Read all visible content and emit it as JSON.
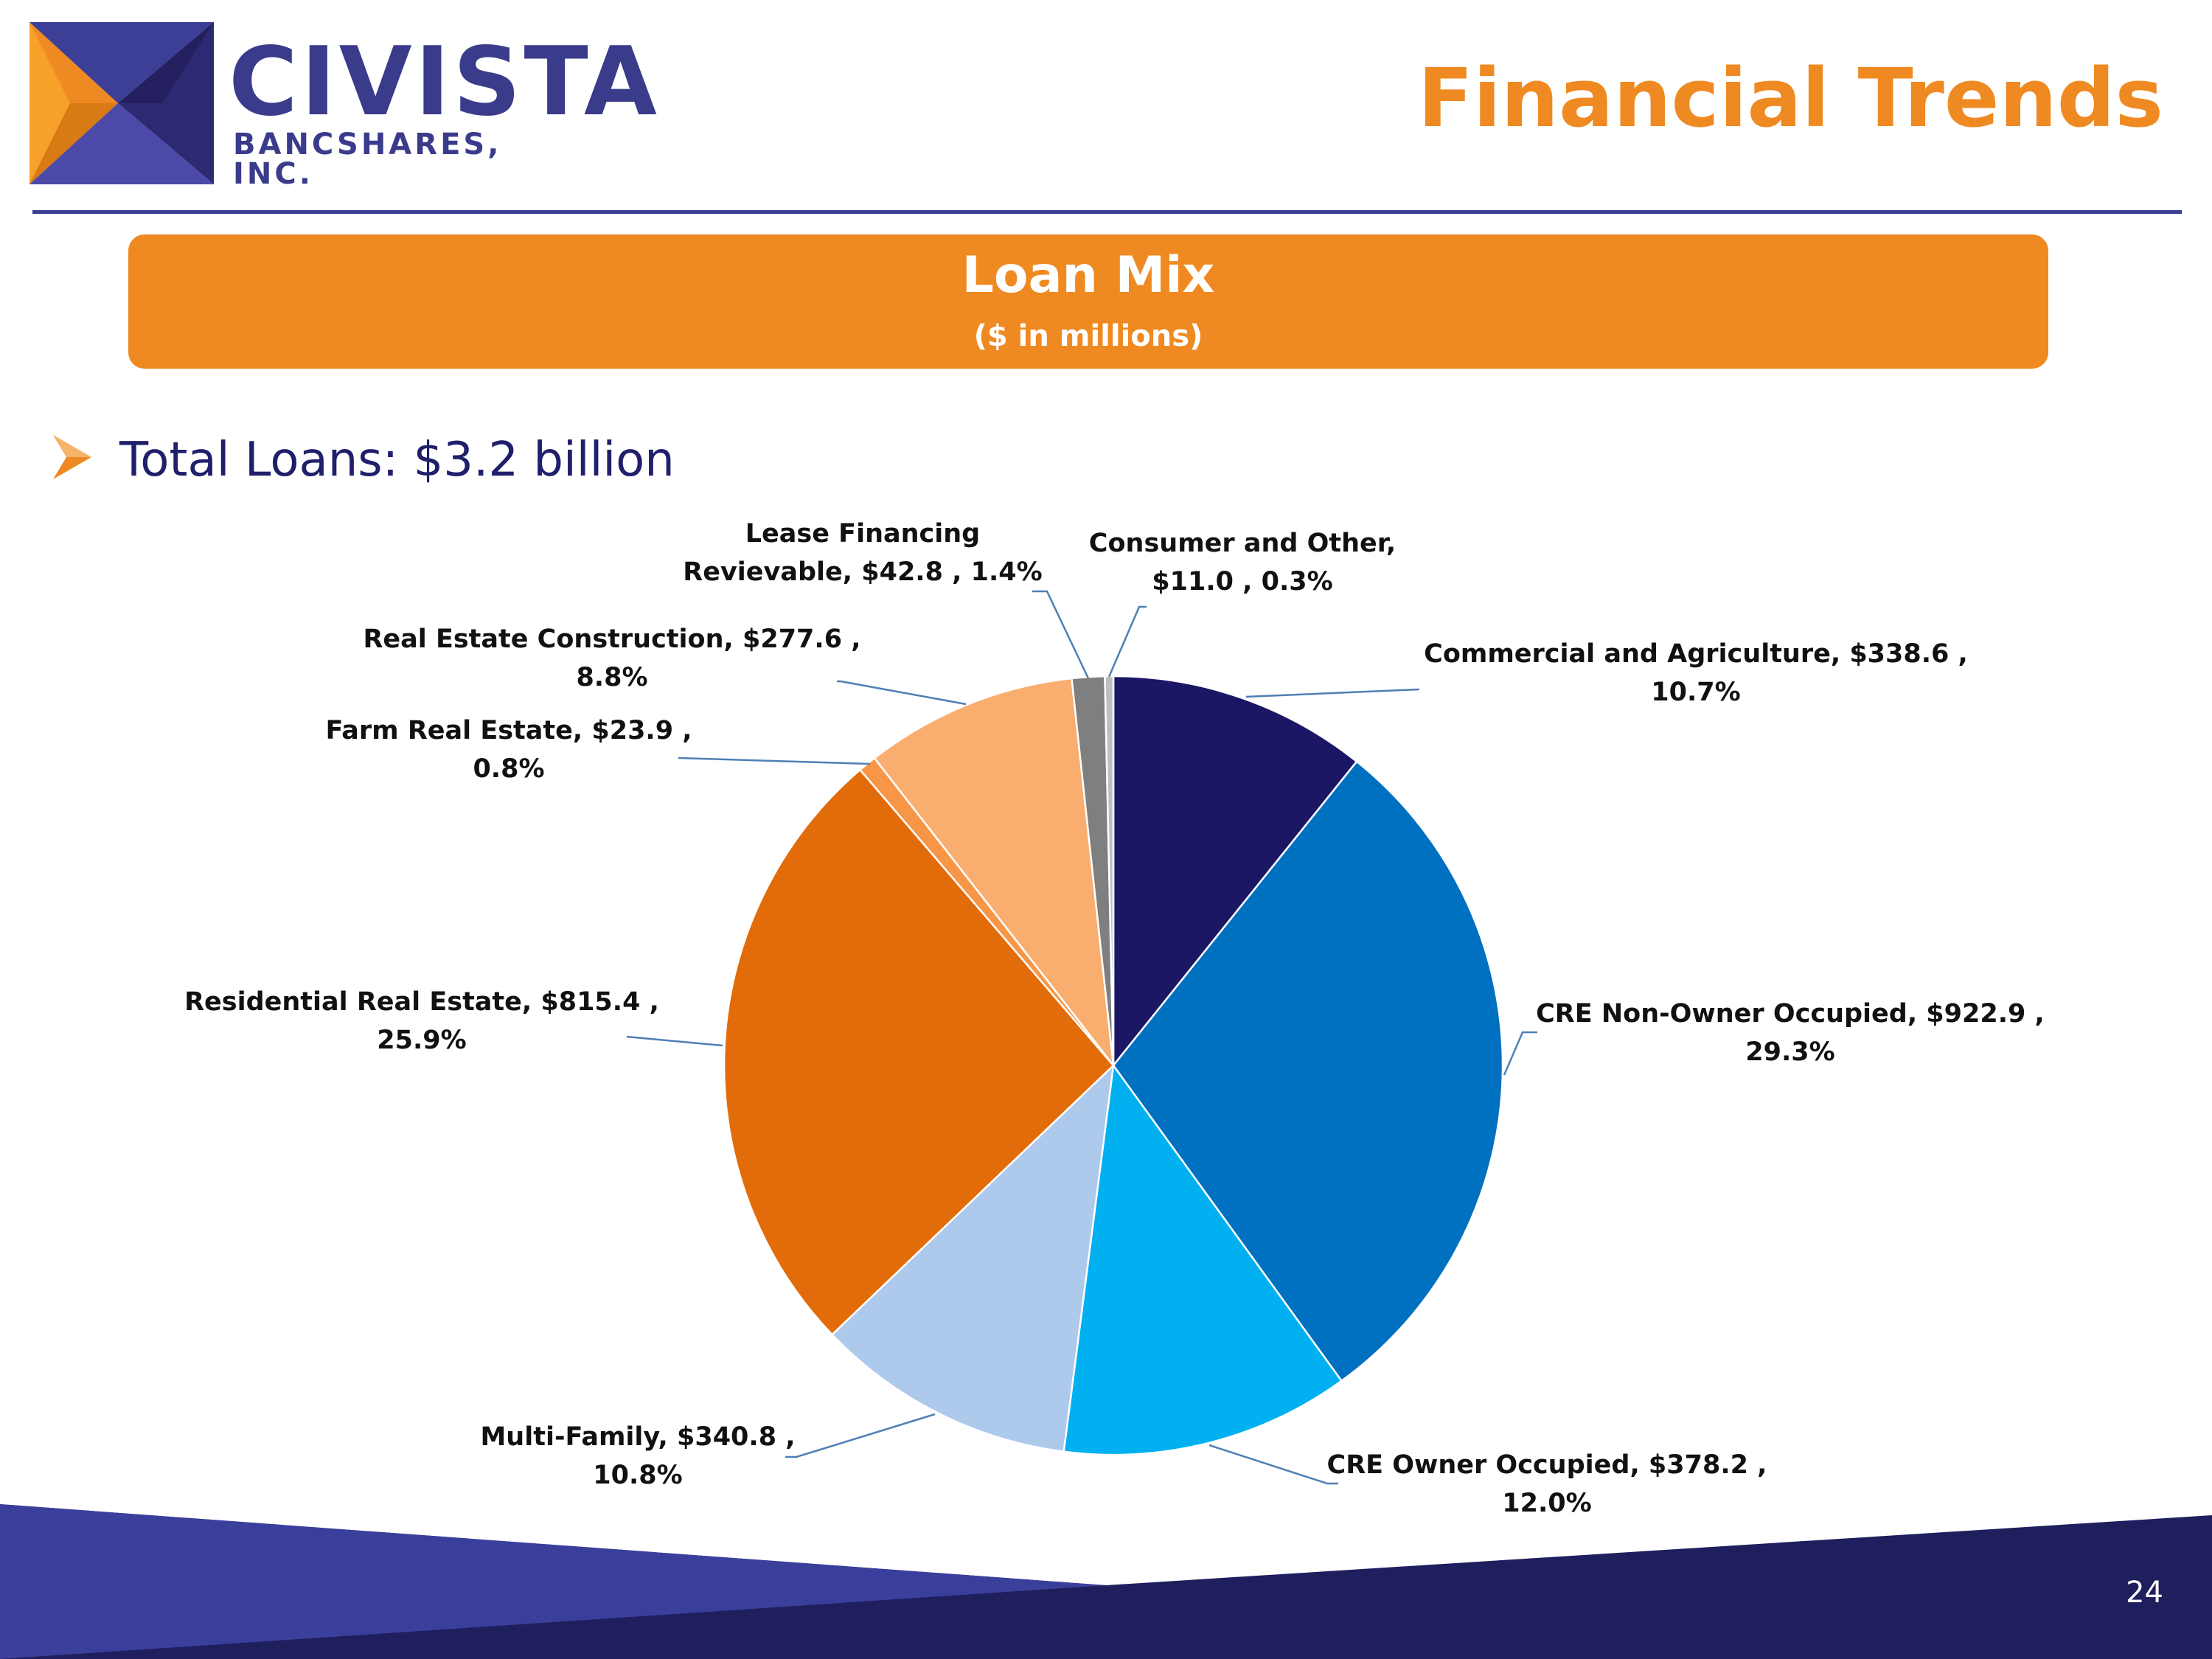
{
  "logo": {
    "name": "CIVISTA",
    "subtitle": "BANCSHARES, INC."
  },
  "header": {
    "title": "Financial Trends"
  },
  "banner": {
    "title": "Loan Mix",
    "subtitle": "($ in millions)"
  },
  "bullet": {
    "text": "Total Loans: $3.2 billion"
  },
  "colors": {
    "accent_orange": "#ef8a22",
    "brand_navy": "#3d3f97",
    "text_navy": "#1f1f6b"
  },
  "chart_data": {
    "type": "pie",
    "title": "Loan Mix",
    "subtitle": "($ in millions)",
    "total_label": "Total Loans: $3.2 billion",
    "slices": [
      {
        "name": "Commercial and Agriculture",
        "value": 338.6,
        "percent": 10.7,
        "color": "#1c1764",
        "label_lines": [
          "Commercial and Agriculture, $338.6 ,",
          "10.7%"
        ]
      },
      {
        "name": "CRE Non-Owner Occupied",
        "value": 922.9,
        "percent": 29.3,
        "color": "#0070c0",
        "label_lines": [
          "CRE Non-Owner Occupied, $922.9 ,",
          "29.3%"
        ]
      },
      {
        "name": "CRE Owner Occupied",
        "value": 378.2,
        "percent": 12.0,
        "color": "#00b0f0",
        "label_lines": [
          "CRE Owner Occupied, $378.2 ,",
          "12.0%"
        ]
      },
      {
        "name": "Multi-Family",
        "value": 340.8,
        "percent": 10.8,
        "color": "#adc9ec",
        "label_lines": [
          "Multi-Family, $340.8 ,",
          "10.8%"
        ]
      },
      {
        "name": "Residential Real Estate",
        "value": 815.4,
        "percent": 25.9,
        "color": "#e36c0a",
        "label_lines": [
          "Residential Real Estate, $815.4 ,",
          "25.9%"
        ]
      },
      {
        "name": "Farm Real Estate",
        "value": 23.9,
        "percent": 0.8,
        "color": "#f79646",
        "label_lines": [
          "Farm Real Estate, $23.9 ,",
          "0.8%"
        ]
      },
      {
        "name": "Real Estate Construction",
        "value": 277.6,
        "percent": 8.8,
        "color": "#f9ae70",
        "label_lines": [
          "Real Estate Construction, $277.6 ,",
          "8.8%"
        ]
      },
      {
        "name": "Lease Financing Revievable",
        "value": 42.8,
        "percent": 1.4,
        "color": "#7f7f7f",
        "label_lines": [
          "Lease Financing",
          "Revievable, $42.8 , 1.4%"
        ]
      },
      {
        "name": "Consumer and Other",
        "value": 11.0,
        "percent": 0.3,
        "color": "#bfbfbf",
        "label_lines": [
          "Consumer and Other,",
          "$11.0 , 0.3%"
        ]
      }
    ]
  },
  "footer": {
    "page_number": "24"
  }
}
